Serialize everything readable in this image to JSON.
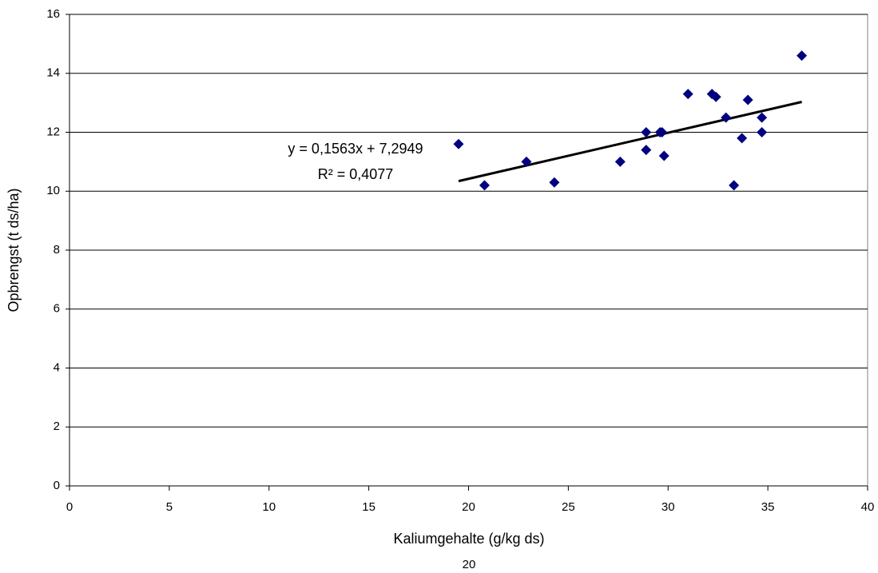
{
  "chart_data": {
    "type": "scatter",
    "x_label": "Kaliumgehalte (g/kg ds)",
    "y_label": "Opbrengst (t ds/ha)",
    "series": [
      {
        "color": "#000080",
        "x": [
          19.5,
          20.8,
          22.9,
          24.3,
          27.6,
          28.9,
          28.9,
          29.6,
          29.7,
          29.8,
          31.0,
          32.2,
          32.4,
          32.9,
          33.3,
          33.7,
          34.0,
          34.7,
          34.7,
          36.7
        ],
        "values": [
          11.6,
          10.2,
          11.0,
          10.3,
          11.0,
          12.0,
          11.4,
          12.0,
          12.0,
          11.2,
          13.3,
          13.3,
          13.2,
          12.5,
          10.2,
          11.8,
          13.1,
          12.5,
          12.0,
          14.6
        ]
      }
    ],
    "trendline": {
      "color": "#000000",
      "slope": 0.1563,
      "intercept": 7.2949,
      "equation": "y = 0,1563x + 7,2949",
      "r2_label": "R² = 0,4077"
    },
    "xlim": [
      0,
      40
    ],
    "xticks": [
      0,
      5,
      10,
      15,
      20,
      25,
      30,
      35,
      40
    ],
    "ylim": [
      0,
      16
    ],
    "yticks": [
      0,
      2,
      4,
      6,
      8,
      10,
      12,
      14,
      16
    ],
    "grid": true
  },
  "page_number": "20"
}
